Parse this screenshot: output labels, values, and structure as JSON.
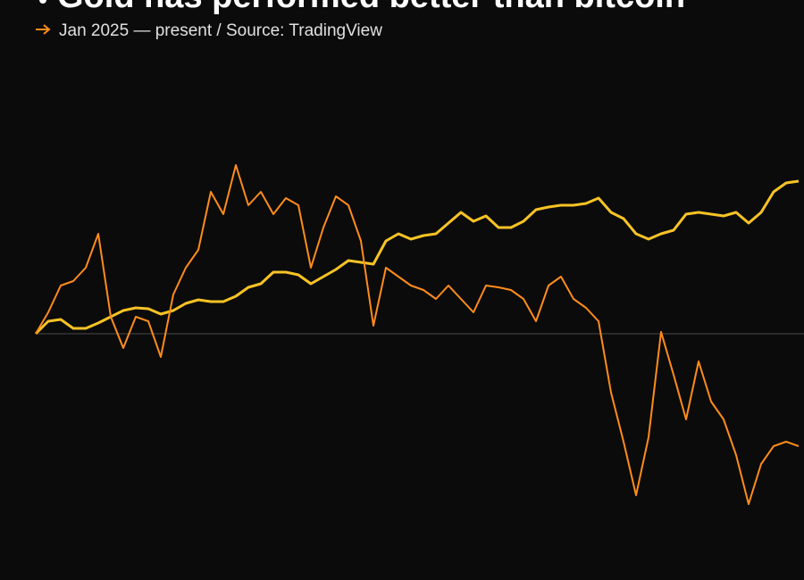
{
  "chart_data": {
    "type": "line",
    "title": "Gold has performed better than bitcoin",
    "subtitle": "Jan 2025 — present / Source: TradingView",
    "ylim": [
      -56.5,
      73.5
    ],
    "series": [
      {
        "color": "#f7c325",
        "values": [
          0,
          3.5,
          4,
          1.5,
          1.5,
          3,
          4.75,
          6.5,
          7.25,
          7,
          5.5,
          6.5,
          8.5,
          9.5,
          9,
          9,
          10.5,
          13,
          14,
          17.25,
          17.25,
          16.5,
          14,
          16,
          18,
          20.5,
          20,
          19.5,
          26,
          28,
          26.5,
          27.5,
          28,
          31,
          34,
          31.5,
          33,
          29.75,
          29.75,
          31.5,
          34.75,
          35.5,
          36,
          36,
          36.5,
          38,
          34,
          32.25,
          28,
          26.5,
          28,
          29,
          33.5,
          34,
          33.5,
          33,
          34,
          31,
          34,
          39.75,
          42.25,
          42.75
        ]
      },
      {
        "color": "#ff8c1a",
        "values": [
          0,
          6,
          13.5,
          14.75,
          18.5,
          28,
          4.75,
          -4,
          4.75,
          3.5,
          -6.5,
          11,
          18.5,
          23.5,
          39.75,
          33.5,
          47.25,
          36,
          39.75,
          33.5,
          38,
          36,
          18.5,
          29.75,
          38.5,
          36,
          26,
          2.25,
          18.5,
          16,
          13.5,
          12.25,
          9.75,
          13.5,
          9.75,
          6,
          13.5,
          13,
          12.25,
          9.75,
          3.5,
          13.5,
          16,
          9.75,
          7.25,
          3.5,
          -16.5,
          -30.25,
          -45.25,
          -29,
          0.5,
          -11.5,
          -24,
          -7.75,
          -19,
          -24,
          -34,
          -47.75,
          -36.5,
          -31.5,
          -30.25,
          -31.5
        ]
      }
    ]
  }
}
